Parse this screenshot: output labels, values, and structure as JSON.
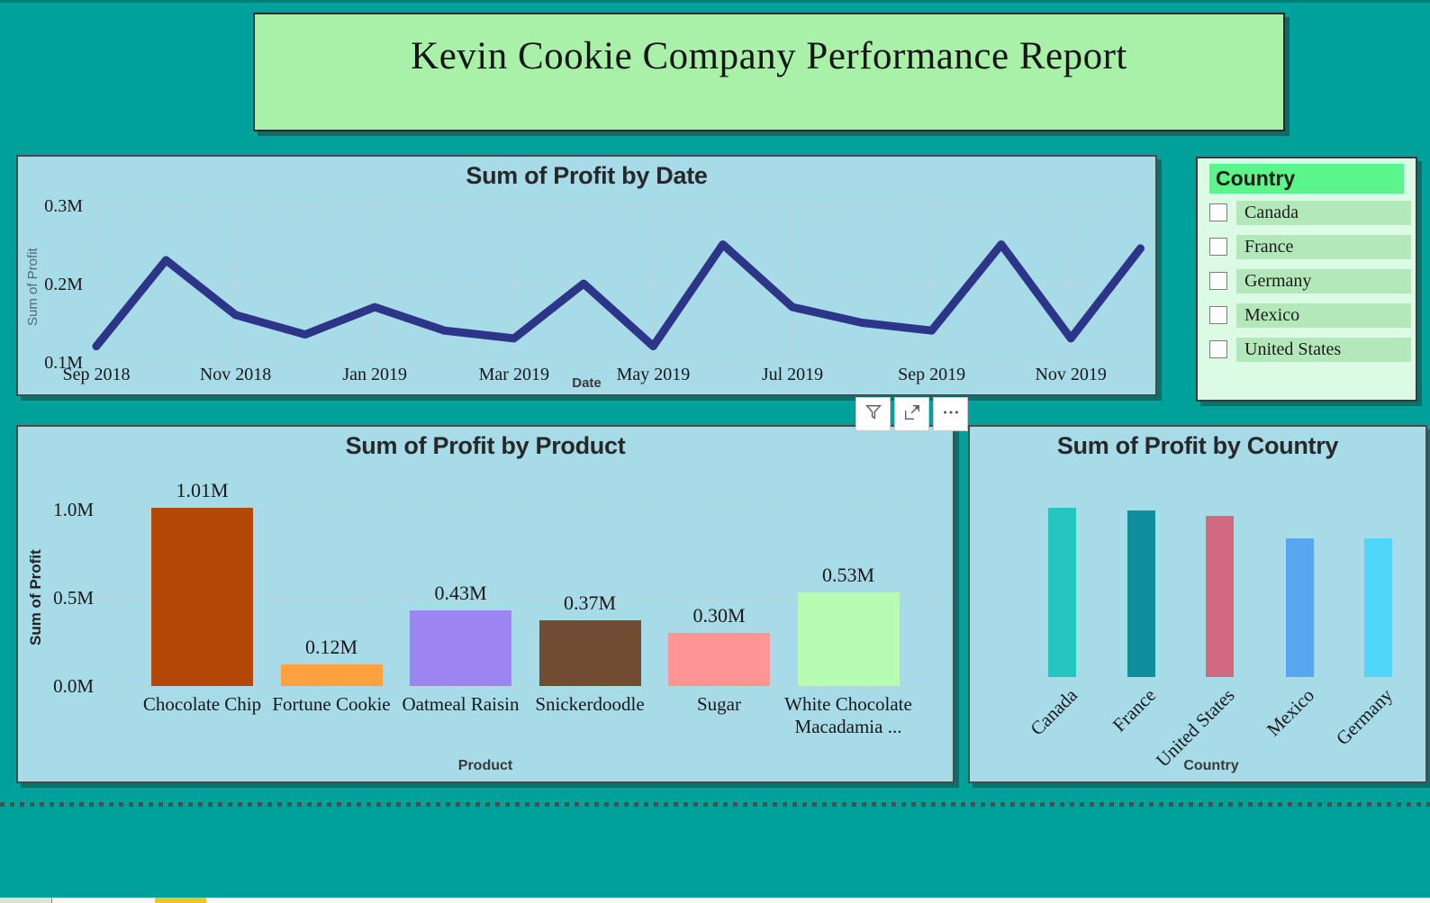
{
  "page": {
    "title": "Kevin Cookie Company Performance Report"
  },
  "colors": {
    "canvas_teal": "#00A09B",
    "panel_blue": "#A7DBE8",
    "banner_green": "#A9F0A9",
    "slicer_bg": "#DCFBE4",
    "slicer_header_green": "#5BF68B",
    "slicer_row_green": "#B3E8BA",
    "line_navy": "#2D3589",
    "gridline_dot": "#DFCBC3",
    "separator_dot": "#4e4e4e",
    "taskbar_accent_yellow": "#E9C52E"
  },
  "slicer": {
    "header": "Country",
    "items": [
      {
        "label": "Canada",
        "checked": false
      },
      {
        "label": "France",
        "checked": false
      },
      {
        "label": "Germany",
        "checked": false
      },
      {
        "label": "Mexico",
        "checked": false
      },
      {
        "label": "United States",
        "checked": false
      }
    ]
  },
  "toolbar": {
    "buttons": [
      "filter",
      "focus-mode",
      "more-options"
    ]
  },
  "chart_data": [
    {
      "id": "sum-of-profit-by-date",
      "type": "line",
      "title": "Sum of Profit by Date",
      "xlabel": "Date",
      "ylabel": "Sum of Profit",
      "x": [
        "Sep 2018",
        "Oct 2018",
        "Nov 2018",
        "Dec 2018",
        "Jan 2019",
        "Feb 2019",
        "Mar 2019",
        "Apr 2019",
        "May 2019",
        "Jun 2019",
        "Jul 2019",
        "Aug 2019",
        "Sep 2019",
        "Oct 2019",
        "Nov 2019",
        "Dec 2019"
      ],
      "values_millions": [
        0.12,
        0.23,
        0.16,
        0.135,
        0.17,
        0.14,
        0.13,
        0.2,
        0.12,
        0.25,
        0.17,
        0.15,
        0.14,
        0.25,
        0.13,
        0.245
      ],
      "x_tick_every": 2,
      "y_ticks": [
        {
          "value": 0.1,
          "label": "0.1M"
        },
        {
          "value": 0.2,
          "label": "0.2M"
        },
        {
          "value": 0.3,
          "label": "0.3M"
        }
      ],
      "ylim": [
        0.08,
        0.32
      ],
      "grid": "dotted",
      "legend": "none",
      "line_color": "#2D3589"
    },
    {
      "id": "sum-of-profit-by-product",
      "type": "bar",
      "title": "Sum of Profit by Product",
      "xlabel": "Product",
      "ylabel": "Sum of Profit",
      "categories": [
        "Chocolate Chip",
        "Fortune Cookie",
        "Oatmeal Raisin",
        "Snickerdoodle",
        "Sugar",
        "White Chocolate Macadamia ..."
      ],
      "values_millions": [
        1.01,
        0.12,
        0.43,
        0.37,
        0.3,
        0.53
      ],
      "data_labels": [
        "1.01M",
        "0.12M",
        "0.43M",
        "0.37M",
        "0.30M",
        "0.53M"
      ],
      "bar_colors": [
        "#B34705",
        "#FFA13F",
        "#9C85F2",
        "#714B32",
        "#FF9495",
        "#B8FCB4"
      ],
      "y_ticks": [
        {
          "value": 0.0,
          "label": "0.0M"
        },
        {
          "value": 0.5,
          "label": "0.5M"
        },
        {
          "value": 1.0,
          "label": "1.0M"
        }
      ],
      "ylim": [
        0,
        1.15
      ],
      "grid": "dotted",
      "legend": "none"
    },
    {
      "id": "sum-of-profit-by-country",
      "type": "bar",
      "title": "Sum of Profit by Country",
      "xlabel": "Country",
      "ylabel": "",
      "categories": [
        "Canada",
        "France",
        "United States",
        "Mexico",
        "Germany"
      ],
      "values_millions": [
        0.61,
        0.6,
        0.58,
        0.5,
        0.5
      ],
      "data_labels": [],
      "bar_colors": [
        "#27C5BF",
        "#118E9E",
        "#D06A80",
        "#57A7F0",
        "#4FD6FA"
      ],
      "y_ticks": [],
      "ylim": [
        0,
        0.92
      ],
      "grid": "off",
      "legend": "none",
      "category_label_rotation_deg": -45
    }
  ]
}
